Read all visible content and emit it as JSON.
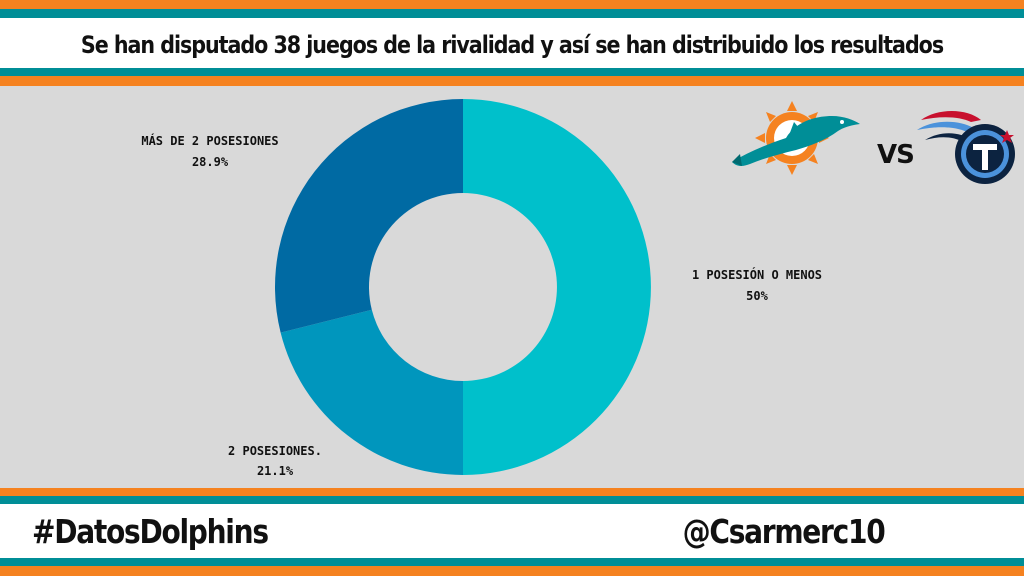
{
  "header": {
    "title": "Se han disputado 38 juegos de la rivalidad y así se han distribuido los resultados"
  },
  "footer": {
    "hashtag": "#DatosDolphins",
    "handle": "@Csarmerc10"
  },
  "matchup": {
    "vs_label": "VS",
    "home_logo_icon": "dolphin-logo-icon",
    "away_logo_icon": "titans-logo-icon"
  },
  "colors": {
    "orange": "#f58220",
    "teal": "#008e97",
    "background": "#d9d9d9"
  },
  "chart_data": {
    "type": "pie",
    "donut": true,
    "start": "top",
    "direction": "clockwise",
    "slices": [
      {
        "label": "1 POSESIÓN O MENOS",
        "value": 50,
        "value_label": "50%",
        "color": "#00c0cb"
      },
      {
        "label": "2 POSESIONES.",
        "value": 21.1,
        "value_label": "21.1%",
        "color": "#0096bd"
      },
      {
        "label": "MÁS DE 2 POSESIONES",
        "value": 28.9,
        "value_label": "28.9%",
        "color": "#006aa3"
      }
    ]
  }
}
